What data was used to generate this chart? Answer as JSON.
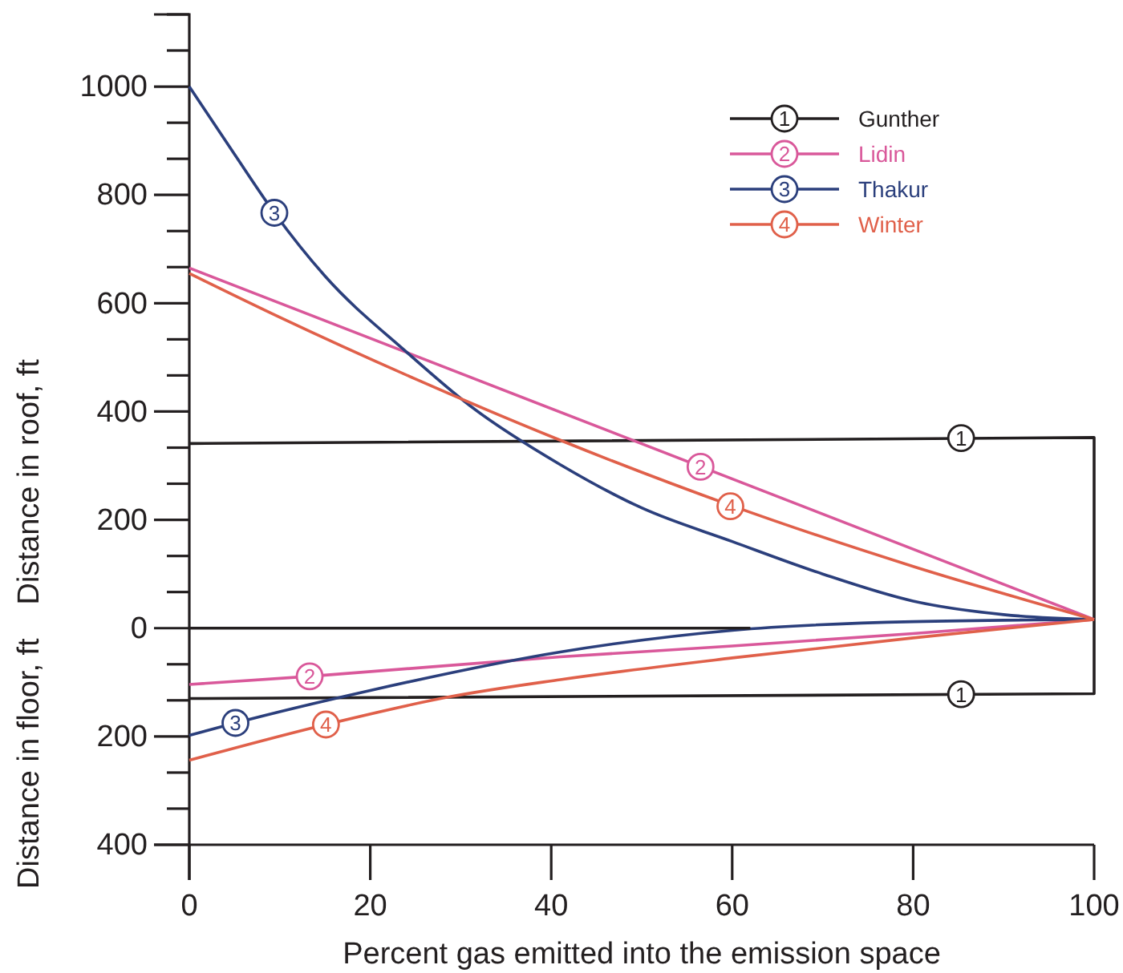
{
  "chart_data": {
    "type": "line",
    "xlabel": "Percent gas emitted into the emission space",
    "ylabel": "Distance in roof, ft",
    "xlim": [
      0,
      100
    ],
    "xticks": [
      0,
      20,
      40,
      60,
      80,
      100
    ],
    "ylim": [
      -400,
      1133.3
    ],
    "yticks": [
      {
        "value": 1133.3,
        "label": null
      },
      {
        "value": 1066.7,
        "label": null
      },
      1000,
      {
        "value": 933.3,
        "label": null
      },
      {
        "value": 866.7,
        "label": null
      },
      800,
      {
        "value": 733.3,
        "label": null
      },
      {
        "value": 666.7,
        "label": null
      },
      600,
      {
        "value": 533.3,
        "label": null
      },
      {
        "value": 466.7,
        "label": null
      },
      400,
      {
        "value": 333.3,
        "label": null
      },
      {
        "value": 266.7,
        "label": null
      },
      200,
      {
        "value": 133.3,
        "label": null
      },
      {
        "value": 66.7,
        "label": null
      },
      0,
      {
        "value": -66.7,
        "label": null
      },
      {
        "value": -133.3,
        "label": null
      },
      {
        "value": -200,
        "label": "200"
      },
      {
        "value": -266.7,
        "label": null
      },
      {
        "value": -333.3,
        "label": null
      },
      {
        "value": -400,
        "label": "400"
      }
    ],
    "series": [
      {
        "name": "Gunther",
        "color": "#231f20",
        "x": [
          0,
          100,
          100,
          0
        ],
        "values": [
          341,
          352,
          -121,
          -130
        ]
      },
      {
        "name": "Lidin",
        "color": "#d9589a",
        "x": [
          0,
          100,
          null,
          0,
          13.3,
          41,
          60,
          80,
          100
        ],
        "values": [
          665,
          16,
          null,
          -104,
          -89,
          -53,
          -33,
          -10,
          16
        ]
      },
      {
        "name": "Thakur",
        "color": "#2b3f7c",
        "x": [
          0,
          5,
          9.4,
          15,
          24,
          31,
          41,
          50,
          60,
          70,
          80,
          90,
          100,
          null,
          0,
          5.1,
          20,
          41,
          60,
          80,
          100
        ],
        "values": [
          1000,
          875,
          767,
          650,
          510,
          411,
          302,
          222,
          160,
          100,
          50,
          25,
          16,
          null,
          -198,
          -175,
          -115,
          -44,
          -4,
          12,
          16
        ]
      },
      {
        "name": "Winter",
        "color": "#e0604a",
        "x": [
          0,
          10,
          25,
          41,
          59.8,
          80,
          100,
          null,
          0,
          15.1,
          28.7,
          41,
          60,
          80,
          100
        ],
        "values": [
          655,
          574,
          460,
          347,
          227,
          114,
          16,
          null,
          -244,
          -178,
          -127,
          -95,
          -55,
          -18,
          16
        ]
      },
      {
        "color": "#231f20",
        "x": [
          0,
          62
        ],
        "values": [
          0,
          0
        ]
      }
    ],
    "annotations": [
      {
        "text": "1",
        "x": 85.3,
        "y": 351
      },
      {
        "text": "1",
        "x": 85.3,
        "y": -122
      },
      {
        "text": "2",
        "x": 56.5,
        "y": 298
      },
      {
        "text": "2",
        "x": 13.3,
        "y": -89
      },
      {
        "text": "3",
        "x": 9.4,
        "y": 767
      },
      {
        "text": "3",
        "x": 5.1,
        "y": -175
      },
      {
        "text": "4",
        "x": 59.8,
        "y": 225
      },
      {
        "text": "4",
        "x": 15.1,
        "y": -178
      },
      "Distance in floor, ft"
    ],
    "legend": "top right",
    "grid": false
  }
}
